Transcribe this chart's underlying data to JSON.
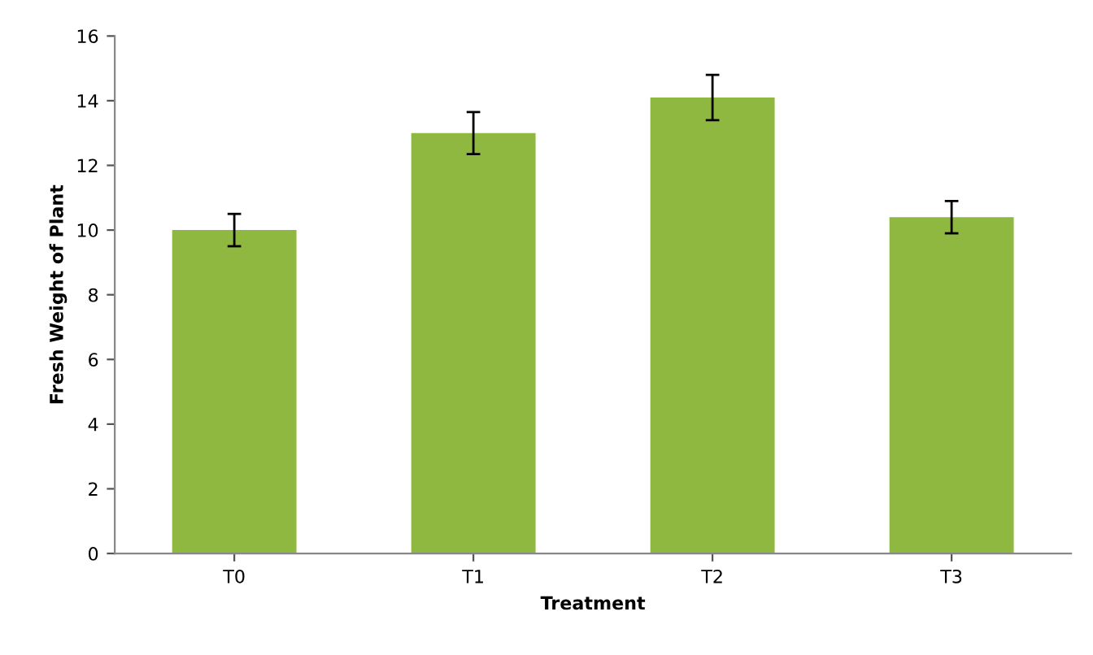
{
  "chart_data": {
    "type": "bar",
    "xlabel": "Treatment",
    "ylabel": "Fresh Weight of Plant",
    "categories": [
      "T0",
      "T1",
      "T2",
      "T3"
    ],
    "values": [
      10.0,
      13.0,
      14.1,
      10.4
    ],
    "errors": [
      0.5,
      0.65,
      0.7,
      0.5
    ],
    "color": "#8fb840",
    "ylim": [
      0,
      16
    ],
    "yticks": [
      0,
      2,
      4,
      6,
      8,
      10,
      12,
      14,
      16
    ],
    "grid": false
  }
}
